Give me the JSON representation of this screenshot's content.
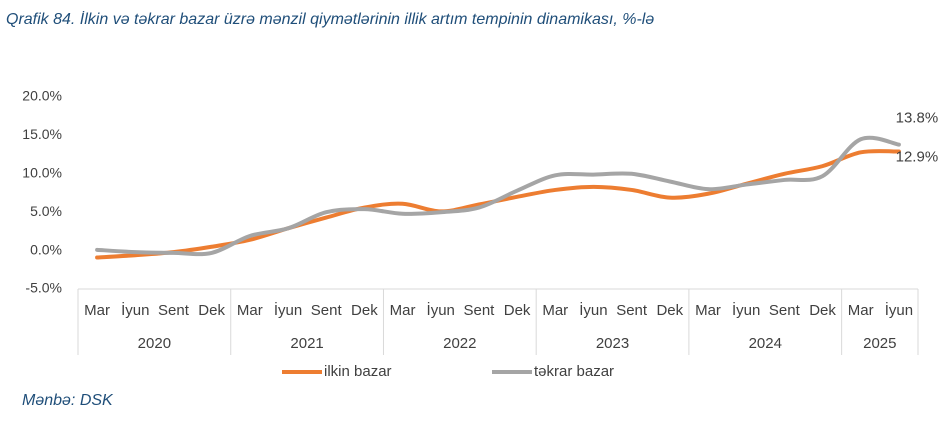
{
  "chart_data": {
    "type": "line",
    "title": "Qrafik 84. İlkin və təkrar bazar üzrə mənzil qiymətlərinin illik artım tempinin dinamikası, %-lə",
    "source": "Mənbə: DSK",
    "groups": [
      {
        "label": "2020",
        "categories": [
          "Mar",
          "İyun",
          "Sent",
          "Dek"
        ]
      },
      {
        "label": "2021",
        "categories": [
          "Mar",
          "İyun",
          "Sent",
          "Dek"
        ]
      },
      {
        "label": "2022",
        "categories": [
          "Mar",
          "İyun",
          "Sent",
          "Dek"
        ]
      },
      {
        "label": "2023",
        "categories": [
          "Mar",
          "İyun",
          "Sent",
          "Dek"
        ]
      },
      {
        "label": "2024",
        "categories": [
          "Mar",
          "İyun",
          "Sent",
          "Dek"
        ]
      },
      {
        "label": "2025",
        "categories": [
          "Mar",
          "İyun"
        ]
      }
    ],
    "series": [
      {
        "name": "ilkin bazar",
        "color": "#ed7d31",
        "values": [
          -0.9,
          -0.6,
          -0.2,
          0.5,
          1.4,
          2.9,
          4.3,
          5.6,
          6.1,
          5.1,
          6.0,
          7.0,
          7.9,
          8.3,
          7.9,
          6.9,
          7.4,
          8.7,
          10.0,
          11.0,
          12.8,
          12.9
        ],
        "value_labels": [
          null,
          null,
          null,
          null,
          null,
          null,
          null,
          null,
          null,
          null,
          null,
          null,
          null,
          null,
          null,
          null,
          null,
          null,
          null,
          null,
          null,
          "12.9%"
        ]
      },
      {
        "name": "təkrar bazar",
        "color": "#a5a5a5",
        "values": [
          0.1,
          -0.2,
          -0.3,
          -0.3,
          1.9,
          2.9,
          5.0,
          5.4,
          4.8,
          5.0,
          5.6,
          7.8,
          9.8,
          9.9,
          10.0,
          9.0,
          8.0,
          8.6,
          9.2,
          9.7,
          14.5,
          13.8
        ],
        "value_labels": [
          null,
          null,
          null,
          null,
          null,
          null,
          null,
          null,
          null,
          null,
          null,
          null,
          null,
          null,
          null,
          null,
          null,
          null,
          null,
          null,
          null,
          "13.8%"
        ]
      }
    ],
    "ylim": [
      -5,
      20
    ],
    "yticks": [
      {
        "value": -5,
        "label": "-5.0%"
      },
      {
        "value": 0,
        "label": "0.0%"
      },
      {
        "value": 5,
        "label": "5.0%"
      },
      {
        "value": 10,
        "label": "10.0%"
      },
      {
        "value": 15,
        "label": "15.0%"
      },
      {
        "value": 20,
        "label": "20.0%"
      }
    ],
    "grid": false,
    "legend": "bottom"
  }
}
